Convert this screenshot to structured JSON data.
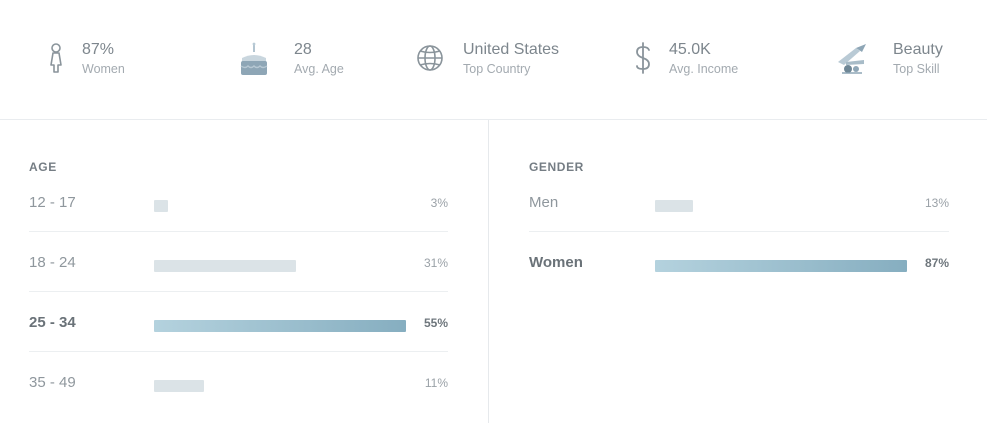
{
  "stats": [
    {
      "icon": "woman-icon",
      "value": "87%",
      "label": "Women"
    },
    {
      "icon": "birthday-cake-icon",
      "value": "28",
      "label": "Avg. Age"
    },
    {
      "icon": "globe-icon",
      "value": "United States",
      "label": "Top Country"
    },
    {
      "icon": "dollar-icon",
      "value": "45.0K",
      "label": "Avg. Income"
    },
    {
      "icon": "makeup-tools-icon",
      "value": "Beauty",
      "label": "Top Skill"
    }
  ],
  "age": {
    "title": "AGE",
    "rows": [
      {
        "label": "12 - 17",
        "percent": 3,
        "percent_label": "3%",
        "highlight": false
      },
      {
        "label": "18 - 24",
        "percent": 31,
        "percent_label": "31%",
        "highlight": false
      },
      {
        "label": "25 - 34",
        "percent": 55,
        "percent_label": "55%",
        "highlight": true
      },
      {
        "label": "35 - 49",
        "percent": 11,
        "percent_label": "11%",
        "highlight": false
      }
    ]
  },
  "gender": {
    "title": "GENDER",
    "rows": [
      {
        "label": "Men",
        "percent": 13,
        "percent_label": "13%",
        "highlight": false
      },
      {
        "label": "Women",
        "percent": 87,
        "percent_label": "87%",
        "highlight": true
      }
    ]
  },
  "colors": {
    "bar_muted": "#dbe3e7",
    "bar_highlight_start": "#b4d2de",
    "bar_highlight_end": "#86aec0",
    "icon": "#8a949b"
  }
}
